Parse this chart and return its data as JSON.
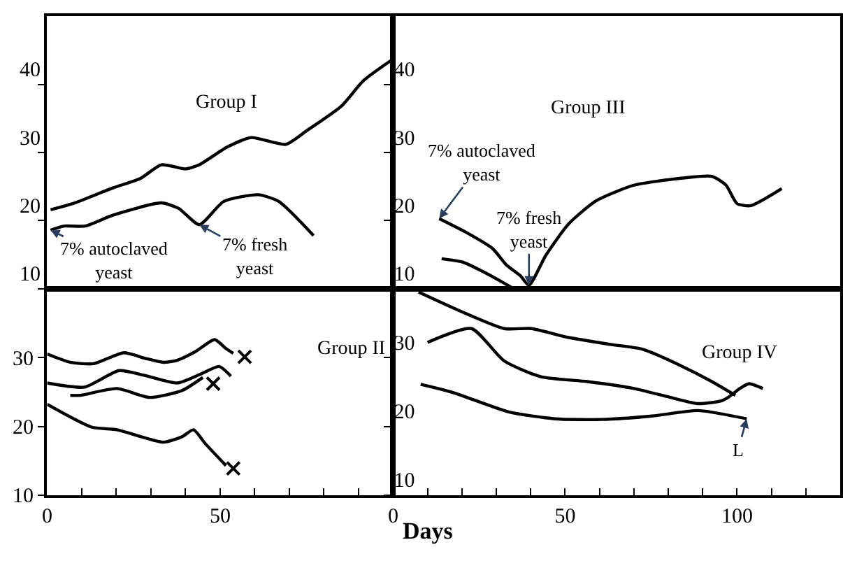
{
  "chart_data": [
    {
      "type": "line",
      "title": "Group I",
      "xlim": [
        0,
        100
      ],
      "ylim": [
        10,
        50
      ],
      "yticks": [
        10,
        20,
        30,
        40
      ],
      "tick_labels": "y",
      "grid": false,
      "series": [
        {
          "color": "#000000",
          "x": [
            1,
            8,
            19,
            27,
            33,
            40,
            44,
            52,
            59,
            69,
            75,
            85,
            91.5,
            99.6
          ],
          "values": [
            21.6,
            22.6,
            24.8,
            26.2,
            28.2,
            27.6,
            28.2,
            30.8,
            32.2,
            31.2,
            33.2,
            36.8,
            40.6,
            43.6
          ]
        },
        {
          "color": "#000000",
          "x": [
            1,
            5,
            11,
            19,
            33,
            38,
            44,
            51,
            61,
            67,
            77
          ],
          "values": [
            18.6,
            19.2,
            19.2,
            20.8,
            22.6,
            21.8,
            19.4,
            22.8,
            23.8,
            22.8,
            17.8
          ]
        }
      ],
      "annotations": [
        {
          "text": "7% autoclaved\nyeast",
          "x": 1,
          "y": 18.6
        },
        {
          "text": "7% fresh\nyeast",
          "x": 44,
          "y": 19.4
        }
      ]
    },
    {
      "type": "line",
      "title": "Group III",
      "xlim": [
        0,
        130
      ],
      "ylim": [
        10,
        50
      ],
      "yticks": [
        10,
        20,
        30,
        40
      ],
      "tick_labels": "y",
      "grid": false,
      "series": [
        {
          "color": "#000000",
          "x": [
            13.4,
            21.5,
            28.9,
            32.9,
            37,
            39.5,
            44.4,
            51,
            59,
            70,
            83.3,
            92.7,
            96.8,
            100,
            104,
            113
          ],
          "values": [
            20.3,
            18.2,
            15.9,
            13.5,
            11.9,
            10.5,
            14.9,
            19.5,
            22.9,
            25.2,
            26.2,
            26.5,
            25.2,
            22.5,
            22.2,
            24.7
          ]
        },
        {
          "color": "#000000",
          "x": [
            14.1,
            20.2,
            26.9,
            32.3,
            35
          ],
          "values": [
            14.4,
            13.9,
            12.3,
            10.8,
            10
          ]
        }
      ],
      "annotations": [
        {
          "text": "7% autoclaved\nyeast",
          "x": 13.4,
          "y": 20.3
        },
        {
          "text": "7% fresh\nyeast",
          "x": 39.5,
          "y": 10.5
        }
      ]
    },
    {
      "type": "line",
      "title": "Group II",
      "xlim": [
        0,
        100
      ],
      "ylim": [
        10,
        40
      ],
      "yticks": [
        10,
        20,
        30
      ],
      "xticks": [
        0,
        {
          "value": 10,
          "label": null
        },
        {
          "value": 20,
          "label": null
        },
        {
          "value": 30,
          "label": null
        },
        {
          "value": 40,
          "label": null
        },
        50,
        {
          "value": 60,
          "label": null
        },
        {
          "value": 70,
          "label": null
        },
        {
          "value": 80,
          "label": null
        },
        {
          "value": 90,
          "label": null
        }
      ],
      "grid": false,
      "series": [
        {
          "color": "#000000",
          "x": [
            0,
            6.7,
            13.4,
            22.2,
            28.2,
            33.6,
            37.6,
            43,
            48.4,
            51.7,
            53.8
          ],
          "values": [
            30.5,
            29.3,
            29.1,
            30.7,
            29.9,
            29.3,
            29.6,
            30.9,
            32.6,
            31.3,
            30.6
          ]
        },
        {
          "color": "#000000",
          "x": [
            0,
            10.8,
            20.8,
            28.2,
            37.6,
            44.4,
            49.7,
            53.1
          ],
          "values": [
            26.3,
            25.7,
            28.1,
            27.4,
            26.3,
            27.6,
            28.7,
            27.3
          ]
        },
        {
          "color": "#000000",
          "x": [
            6.7,
            9.4,
            20.2,
            29.6,
            39,
            45
          ],
          "values": [
            24.5,
            24.5,
            25.5,
            24.2,
            25.2,
            27.1
          ]
        },
        {
          "color": "#000000",
          "x": [
            0,
            12.8,
            20.2,
            33.6,
            39,
            42.3,
            45.7,
            51.7
          ],
          "values": [
            23.2,
            19.9,
            19.5,
            17.7,
            18.5,
            19.5,
            17.5,
            14.3
          ]
        },
        {
          "type": "scatter",
          "marker": "cross",
          "color": "#000000",
          "x": [
            57.1,
            48,
            53.8
          ],
          "values": [
            30.1,
            26.2,
            13.9
          ]
        }
      ]
    },
    {
      "type": "line",
      "title": "Group IV",
      "xlabel": "Days",
      "xlim": [
        0,
        130
      ],
      "ylim": [
        10,
        40
      ],
      "yticks": [
        10,
        20,
        30
      ],
      "xticks": [
        0,
        {
          "value": 10,
          "label": null
        },
        {
          "value": 20,
          "label": null
        },
        {
          "value": 30,
          "label": null
        },
        {
          "value": 40,
          "label": null
        },
        50,
        {
          "value": 60,
          "label": null
        },
        {
          "value": 70,
          "label": null
        },
        {
          "value": 80,
          "label": null
        },
        {
          "value": 90,
          "label": null
        },
        100,
        {
          "value": 110,
          "label": null
        },
        {
          "value": 120,
          "label": null
        }
      ],
      "grid": false,
      "series": [
        {
          "color": "#000000",
          "x": [
            7.4,
            18.8,
            32.3,
            40.3,
            51,
            63.2,
            72.6,
            83.3,
            92.7,
            99.5
          ],
          "values": [
            39.5,
            36.9,
            34.2,
            34.2,
            32.9,
            31.9,
            31.2,
            28.9,
            26.5,
            24.5
          ]
        },
        {
          "color": "#000000",
          "x": [
            10,
            22.8,
            32.3,
            43,
            56.5,
            70,
            80.6,
            88.7,
            95.4,
            97.4,
            100.8,
            103.5,
            107.5
          ],
          "values": [
            32.2,
            34.2,
            29.5,
            27.2,
            26.5,
            25.5,
            24.2,
            23.3,
            23.7,
            24.2,
            25.5,
            26.2,
            25.5
          ]
        },
        {
          "color": "#000000",
          "x": [
            8,
            17.5,
            33.6,
            47,
            60.5,
            75.3,
            88.7,
            102.8
          ],
          "values": [
            26.1,
            24.9,
            22.1,
            21.1,
            21,
            21.5,
            22.3,
            21.1
          ]
        }
      ],
      "annotations": [
        {
          "text": "L",
          "x": 102.8,
          "y": 21.1
        }
      ]
    }
  ]
}
